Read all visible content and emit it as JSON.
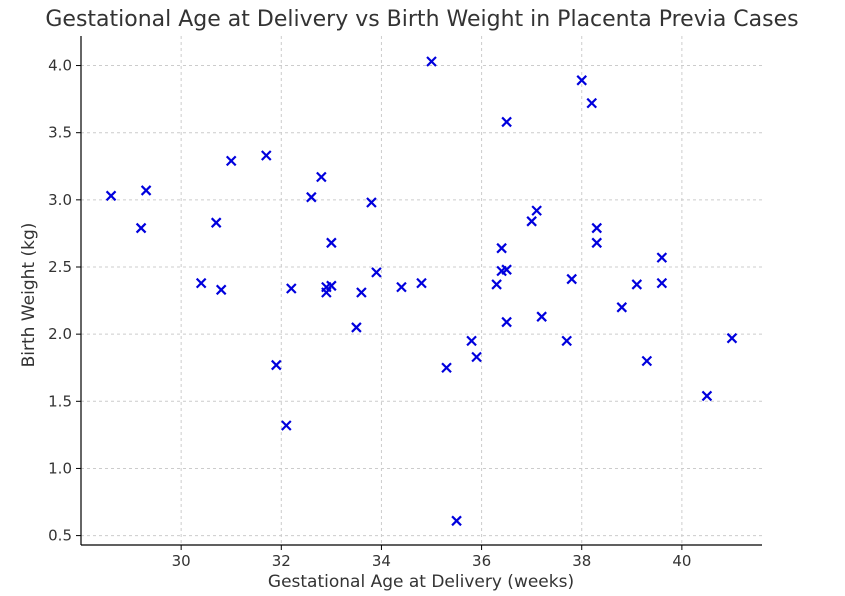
{
  "chart_data": {
    "type": "scatter",
    "title": "Gestational Age at Delivery vs Birth Weight in Placenta Previa Cases",
    "xlabel": "Gestational Age at Delivery (weeks)",
    "ylabel": "Birth Weight (kg)",
    "xlim": [
      28.0,
      41.6
    ],
    "ylim": [
      0.43,
      4.22
    ],
    "xticks": [
      30,
      32,
      34,
      36,
      38,
      40
    ],
    "yticks": [
      0.5,
      1.0,
      1.5,
      2.0,
      2.5,
      3.0,
      3.5,
      4.0
    ],
    "xtick_labels": [
      "30",
      "32",
      "34",
      "36",
      "38",
      "40"
    ],
    "ytick_labels": [
      "0.5",
      "1.0",
      "1.5",
      "2.0",
      "2.5",
      "3.0",
      "3.5",
      "4.0"
    ],
    "grid": true,
    "marker": "x",
    "color": "#0000dd",
    "series": [
      {
        "points": [
          [
            28.6,
            3.03
          ],
          [
            29.2,
            2.79
          ],
          [
            29.3,
            3.07
          ],
          [
            30.4,
            2.38
          ],
          [
            30.7,
            2.83
          ],
          [
            30.8,
            2.33
          ],
          [
            31.0,
            3.29
          ],
          [
            31.7,
            3.33
          ],
          [
            31.9,
            1.77
          ],
          [
            32.1,
            1.32
          ],
          [
            32.2,
            2.34
          ],
          [
            32.6,
            3.02
          ],
          [
            32.8,
            3.17
          ],
          [
            32.9,
            2.31
          ],
          [
            32.9,
            2.35
          ],
          [
            33.0,
            2.36
          ],
          [
            33.0,
            2.68
          ],
          [
            33.5,
            2.05
          ],
          [
            33.6,
            2.31
          ],
          [
            33.8,
            2.98
          ],
          [
            33.9,
            2.46
          ],
          [
            34.4,
            2.35
          ],
          [
            34.8,
            2.38
          ],
          [
            35.0,
            4.03
          ],
          [
            35.3,
            1.75
          ],
          [
            35.5,
            0.61
          ],
          [
            35.8,
            1.95
          ],
          [
            35.9,
            1.83
          ],
          [
            36.3,
            2.37
          ],
          [
            36.4,
            2.64
          ],
          [
            36.4,
            2.47
          ],
          [
            36.5,
            2.48
          ],
          [
            36.5,
            3.58
          ],
          [
            36.5,
            2.09
          ],
          [
            37.0,
            2.84
          ],
          [
            37.1,
            2.92
          ],
          [
            37.2,
            2.13
          ],
          [
            37.7,
            1.95
          ],
          [
            37.8,
            2.41
          ],
          [
            38.0,
            3.89
          ],
          [
            38.2,
            3.72
          ],
          [
            38.3,
            2.79
          ],
          [
            38.3,
            2.68
          ],
          [
            38.8,
            2.2
          ],
          [
            39.1,
            2.37
          ],
          [
            39.3,
            1.8
          ],
          [
            39.6,
            2.38
          ],
          [
            39.6,
            2.57
          ],
          [
            40.5,
            1.54
          ],
          [
            41.0,
            1.97
          ]
        ]
      }
    ]
  }
}
